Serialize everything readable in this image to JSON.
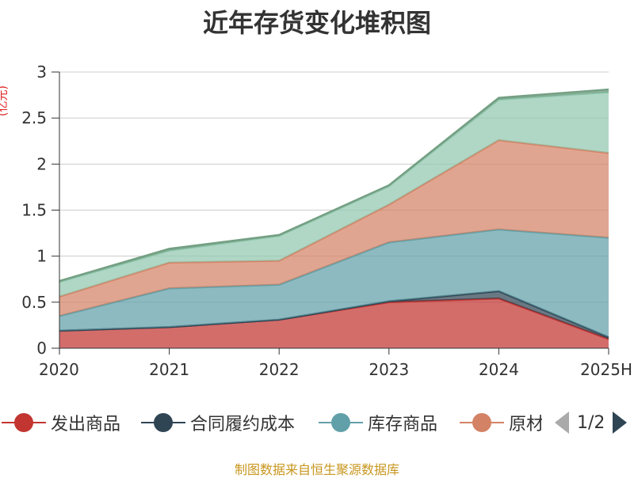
{
  "chart_data": {
    "type": "area",
    "stacked": true,
    "title": "近年存货变化堆积图",
    "ylabel": "(亿元)",
    "categories": [
      "2020",
      "2021",
      "2022",
      "2023",
      "2024",
      "2025H"
    ],
    "ylim": [
      0,
      3
    ],
    "yticks": [
      "0",
      "0.5",
      "1",
      "1.5",
      "2",
      "2.5",
      "3"
    ],
    "grid": true,
    "series": [
      {
        "name": "发出商品",
        "color": "#c23531",
        "values": [
          0.19,
          0.23,
          0.31,
          0.5,
          0.54,
          0.1
        ]
      },
      {
        "name": "合同履约成本",
        "color": "#2f4554",
        "values": [
          0.0,
          0.0,
          0.0,
          0.01,
          0.08,
          0.02
        ]
      },
      {
        "name": "库存商品",
        "color": "#61a0a8",
        "values": [
          0.16,
          0.42,
          0.38,
          0.64,
          0.67,
          1.08
        ]
      },
      {
        "name": "原材料",
        "color": "#d48265",
        "values": [
          0.21,
          0.28,
          0.26,
          0.41,
          0.97,
          0.92
        ]
      },
      {
        "name": "",
        "color": "#91c7ae",
        "values": [
          0.16,
          0.13,
          0.27,
          0.2,
          0.44,
          0.66
        ]
      },
      {
        "name": "",
        "color": "#749f83",
        "values": [
          0.01,
          0.02,
          0.01,
          0.01,
          0.02,
          0.03
        ]
      }
    ],
    "legend_position": "bottom"
  },
  "legend": {
    "page_text": "1/2",
    "visible_labels": [
      "发出商品",
      "合同履约成本",
      "库存商品",
      "原材料"
    ]
  },
  "source_text": "制图数据来自恒生聚源数据库"
}
